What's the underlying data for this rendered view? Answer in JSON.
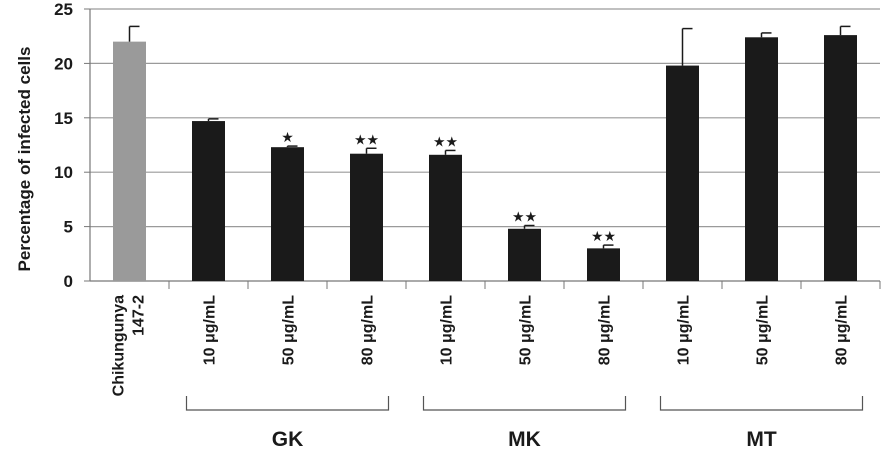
{
  "chart_data": {
    "type": "bar",
    "ylabel": "Percentage of infected cells",
    "ylim": [
      0,
      25
    ],
    "yticks": [
      0,
      5,
      10,
      15,
      20,
      25
    ],
    "grid": true,
    "categories": [
      {
        "label": "Chikungunya 147-2",
        "value": 22.0,
        "error": 1.4,
        "sig": "",
        "color": "#9a9a9a"
      },
      {
        "label": "10 μg/mL",
        "group": "GK",
        "value": 14.7,
        "error": 0.2,
        "sig": "",
        "color": "#1a1a1a"
      },
      {
        "label": "50 μg/mL",
        "group": "GK",
        "value": 12.3,
        "error": 0.1,
        "sig": "★",
        "color": "#1a1a1a"
      },
      {
        "label": "80 μg/mL",
        "group": "GK",
        "value": 11.7,
        "error": 0.5,
        "sig": "★★",
        "color": "#1a1a1a"
      },
      {
        "label": "10 μg/mL",
        "group": "MK",
        "value": 11.6,
        "error": 0.4,
        "sig": "★★",
        "color": "#1a1a1a"
      },
      {
        "label": "50 μg/mL",
        "group": "MK",
        "value": 4.8,
        "error": 0.3,
        "sig": "★★",
        "color": "#1a1a1a"
      },
      {
        "label": "80 μg/mL",
        "group": "MK",
        "value": 3.0,
        "error": 0.3,
        "sig": "★★",
        "color": "#1a1a1a"
      },
      {
        "label": "10 μg/mL",
        "group": "MT",
        "value": 19.8,
        "error": 3.4,
        "sig": "",
        "color": "#1a1a1a"
      },
      {
        "label": "50 μg/mL",
        "group": "MT",
        "value": 22.4,
        "error": 0.4,
        "sig": "",
        "color": "#1a1a1a"
      },
      {
        "label": "80 μg/mL",
        "group": "MT",
        "value": 22.6,
        "error": 0.8,
        "sig": "",
        "color": "#1a1a1a"
      }
    ],
    "groups": [
      {
        "name": "GK",
        "start": 1,
        "end": 3
      },
      {
        "name": "MK",
        "start": 4,
        "end": 6
      },
      {
        "name": "MT",
        "start": 7,
        "end": 9
      }
    ],
    "first_label_lines": [
      "Chikungunya",
      "147-2"
    ]
  }
}
